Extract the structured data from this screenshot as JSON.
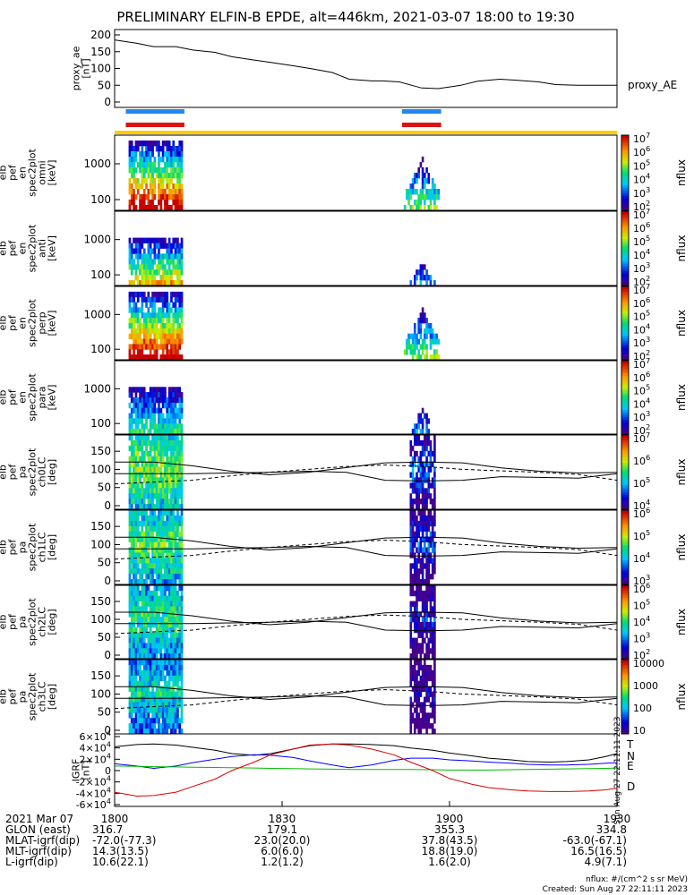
{
  "title": "PRELIMINARY ELFIN-B EPDE, alt=446km, 2021-03-07 18:00 to 19:30",
  "chart_data": [
    {
      "type": "line",
      "name": "proxy_ae",
      "ylabel": [
        "proxy_ae",
        "[nT]"
      ],
      "ylim": [
        0,
        200
      ],
      "yticks": [
        "0",
        "50",
        "100",
        "150",
        "200"
      ],
      "legend": "proxy_AE",
      "x_minutes": [
        0,
        4,
        7,
        11,
        14,
        18,
        21,
        25,
        28,
        32,
        35,
        39,
        42,
        46,
        48,
        51,
        55,
        58,
        62,
        65,
        69,
        72,
        76,
        79,
        83,
        86,
        90
      ],
      "values": [
        185,
        175,
        165,
        165,
        155,
        148,
        135,
        125,
        118,
        108,
        100,
        88,
        68,
        63,
        63,
        60,
        42,
        40,
        50,
        62,
        68,
        65,
        60,
        52,
        50,
        50,
        50
      ]
    },
    {
      "type": "heatmap",
      "name": "elb_pef_en_spec2plot_omni",
      "ylabel": [
        "elb",
        "pef",
        "en",
        "spec2plot",
        "omni",
        "[keV]"
      ],
      "yticks": [
        "100",
        "1000"
      ],
      "colorbar_ticks": [
        "10^2",
        "10^3",
        "10^4",
        "10^5",
        "10^6",
        "10^7"
      ],
      "colorbar_label": "nflux"
    },
    {
      "type": "heatmap",
      "name": "elb_pef_en_spec2plot_anti",
      "ylabel": [
        "elb",
        "pef",
        "en",
        "spec2plot",
        "anti",
        "[keV]"
      ],
      "yticks": [
        "100",
        "1000"
      ],
      "colorbar_ticks": [
        "10^2",
        "10^3",
        "10^4",
        "10^5",
        "10^6",
        "10^7"
      ],
      "colorbar_label": "nflux"
    },
    {
      "type": "heatmap",
      "name": "elb_pef_en_spec2plot_perp",
      "ylabel": [
        "elb",
        "pef",
        "en",
        "spec2plot",
        "perp",
        "[keV]"
      ],
      "yticks": [
        "100",
        "1000"
      ],
      "colorbar_ticks": [
        "10^2",
        "10^3",
        "10^4",
        "10^5",
        "10^6",
        "10^7"
      ],
      "colorbar_label": "nflux"
    },
    {
      "type": "heatmap",
      "name": "elb_pef_en_spec2plot_para",
      "ylabel": [
        "elb",
        "pef",
        "en",
        "spec2plot",
        "para",
        "[keV]"
      ],
      "yticks": [
        "100",
        "1000"
      ],
      "colorbar_ticks": [
        "10^2",
        "10^3",
        "10^4",
        "10^5",
        "10^6",
        "10^7"
      ],
      "colorbar_label": "nflux"
    },
    {
      "type": "heatmap",
      "name": "elb_pef_pa_spec2plot_ch0LC",
      "ylabel": [
        "elb",
        "pef",
        "pa",
        "spec2plot",
        "ch0LC",
        "[deg]"
      ],
      "yticks": [
        "0",
        "50",
        "100",
        "150"
      ],
      "colorbar_ticks": [
        "10^4",
        "10^5",
        "10^6",
        "10^7"
      ],
      "colorbar_label": "nflux"
    },
    {
      "type": "heatmap",
      "name": "elb_pef_pa_spec2plot_ch1LC",
      "ylabel": [
        "elb",
        "pef",
        "pa",
        "spec2plot",
        "ch1LC",
        "[deg]"
      ],
      "yticks": [
        "0",
        "50",
        "100",
        "150"
      ],
      "colorbar_ticks": [
        "10^3",
        "10^4",
        "10^5",
        "10^6"
      ],
      "colorbar_label": "nflux"
    },
    {
      "type": "heatmap",
      "name": "elb_pef_pa_spec2plot_ch2LC",
      "ylabel": [
        "elb",
        "pef",
        "pa",
        "spec2plot",
        "ch2LC",
        "[deg]"
      ],
      "yticks": [
        "0",
        "50",
        "100",
        "150"
      ],
      "colorbar_ticks": [
        "10^2",
        "10^3",
        "10^4",
        "10^5",
        "10^6"
      ],
      "colorbar_label": "nflux"
    },
    {
      "type": "heatmap",
      "name": "elb_pef_pa_spec2plot_ch3LC",
      "ylabel": [
        "elb",
        "pef",
        "pa",
        "spec2plot",
        "ch3LC",
        "[deg]"
      ],
      "yticks": [
        "0",
        "50",
        "100",
        "150"
      ],
      "colorbar_ticks": [
        "10",
        "100",
        "1000",
        "10000"
      ],
      "colorbar_label": "nflux"
    },
    {
      "type": "line",
      "name": "IGRF",
      "ylabel": [
        "IGRF",
        "[nT]"
      ],
      "ylim": [
        -60000,
        60000
      ],
      "yticks": [
        "-6×10^4",
        "-4×10^4",
        "-2×10^4",
        "0",
        "2×10^4",
        "4×10^4",
        "6×10^4"
      ],
      "x_minutes": [
        0,
        4,
        7,
        11,
        14,
        18,
        21,
        25,
        28,
        32,
        35,
        39,
        42,
        46,
        50,
        53,
        57,
        60,
        64,
        67,
        71,
        74,
        78,
        81,
        85,
        88,
        90
      ],
      "series": [
        {
          "name": "T",
          "color": "#000000",
          "values": [
            42000,
            46000,
            47000,
            45000,
            41000,
            36000,
            30000,
            27000,
            30000,
            38000,
            44000,
            47000,
            47000,
            46000,
            44000,
            40000,
            36000,
            31000,
            26000,
            22000,
            19000,
            16000,
            15000,
            16000,
            19000,
            25000,
            30000
          ]
        },
        {
          "name": "N",
          "color": "#0000ff",
          "values": [
            12000,
            8000,
            4000,
            8000,
            14000,
            20000,
            25000,
            28000,
            27000,
            23000,
            17000,
            10000,
            5000,
            10000,
            18000,
            22000,
            22000,
            19000,
            17000,
            15000,
            13000,
            11000,
            10000,
            10000,
            11000,
            13000,
            14000
          ]
        },
        {
          "name": "E",
          "color": "#00bb00",
          "values": [
            8000,
            7500,
            7000,
            6500,
            6000,
            5500,
            5000,
            4500,
            4000,
            3500,
            3000,
            2500,
            2000,
            2000,
            2000,
            2000,
            1500,
            1000,
            1000,
            1000,
            1500,
            2000,
            2500,
            3000,
            3500,
            4000,
            4500
          ]
        },
        {
          "name": "D",
          "color": "#dd0000",
          "values": [
            -38000,
            -45000,
            -44000,
            -38000,
            -28000,
            -15000,
            0,
            15000,
            28000,
            38000,
            45000,
            47000,
            45000,
            38000,
            28000,
            15000,
            0,
            -14000,
            -24000,
            -30000,
            -34000,
            -36000,
            -37000,
            -37000,
            -36000,
            -34000,
            -31000
          ]
        }
      ]
    }
  ],
  "bars": {
    "blue": {
      "color": "#2288ee",
      "intervals": [
        [
          2,
          12.5
        ],
        [
          51.5,
          58.5
        ]
      ]
    },
    "red": {
      "color": "#dd1111",
      "intervals": [
        [
          2,
          12.5
        ],
        [
          51.5,
          58.5
        ]
      ]
    },
    "yellow": {
      "color": "#ffcc00"
    }
  },
  "xaxis": {
    "ticks": [
      "1800",
      "1830",
      "1900",
      "1930"
    ],
    "date": "2021 Mar 07",
    "rows": [
      {
        "label": "GLON (east)",
        "values": [
          "316.7",
          "179.1",
          "355.3",
          "334.8"
        ]
      },
      {
        "label": "MLAT-igrf(dip)",
        "values": [
          "-72.0(-77.3)",
          "23.0(20.0)",
          "37.8(43.5)",
          "-63.0(-67.1)"
        ]
      },
      {
        "label": "MLT-igrf(dip)",
        "values": [
          "14.3(13.5)",
          "6.0(6.0)",
          "18.8(19.0)",
          "16.5(16.5)"
        ]
      },
      {
        "label": "L-igrf(dip)",
        "values": [
          "10.6(22.1)",
          "1.2(1.2)",
          "1.6(2.0)",
          "4.9(7.1)"
        ]
      }
    ]
  },
  "footer": {
    "units": "nflux: #/(cm^2 s sr MeV)",
    "created": "Created: Sun Aug 27 22:11:11 2023",
    "side_stamp": "Sun Aug 27 22:11:11 2023"
  }
}
